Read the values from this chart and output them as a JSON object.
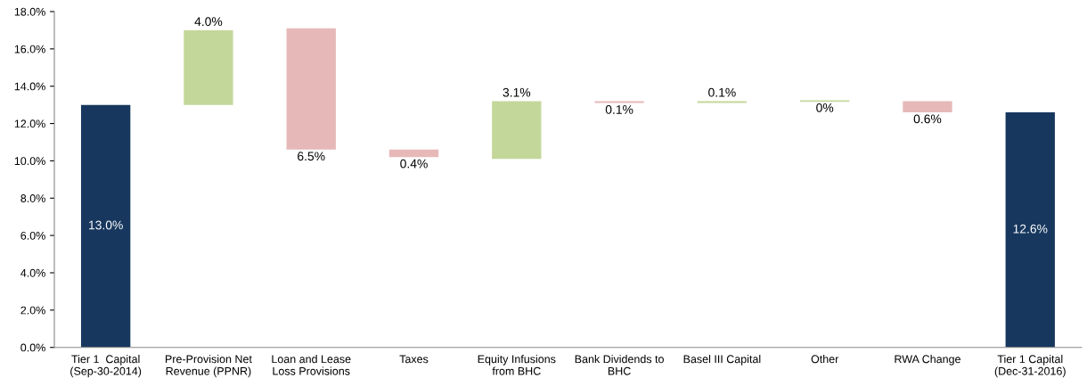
{
  "chart_data": {
    "type": "bar",
    "categories": [
      "Tier 1  Capital\n(Sep-30-2014)",
      "Pre-Provision Net\nRevenue (PPNR)",
      "Loan and Lease\nLoss Provisions",
      "Taxes",
      "Equity Infusions\nfrom BHC",
      "Bank Dividends to\nBHC",
      "Basel III Capital",
      "Other",
      "RWA Change",
      "Tier 1 Capital\n(Dec-31-2016)"
    ],
    "base": [
      0,
      13.0,
      17.1,
      10.6,
      10.1,
      13.2,
      13.1,
      13.2,
      13.2,
      0
    ],
    "values": [
      13.0,
      4.0,
      -6.5,
      -0.4,
      3.1,
      -0.1,
      0.1,
      0,
      -0.6,
      12.6
    ],
    "value_labels": [
      "13.0%",
      "4.0%",
      "6.5%",
      "0.4%",
      "3.1%",
      "0.1%",
      "0.1%",
      "0%",
      "0.6%",
      "12.6%"
    ],
    "colors": [
      "#17375e",
      "#c4d79b",
      "#e6b9b8",
      "#e6b9b8",
      "#c4d79b",
      "#e6b9b8",
      "#c4d79b",
      "#c4d79b",
      "#e6b9b8",
      "#17375e"
    ],
    "ylim": [
      0,
      18
    ],
    "yticks": [
      {
        "value": 0,
        "label": "0.0%"
      },
      {
        "value": 2,
        "label": "2.0%"
      },
      {
        "value": 4,
        "label": "4.0%"
      },
      {
        "value": 6,
        "label": "6.0%"
      },
      {
        "value": 8,
        "label": "8.0%"
      },
      {
        "value": 10,
        "label": "10.0%"
      },
      {
        "value": 12,
        "label": "12.0%"
      },
      {
        "value": 14,
        "label": "14.0%"
      },
      {
        "value": 16,
        "label": "16.0%"
      },
      {
        "value": 18,
        "label": "18.0%"
      }
    ],
    "grid": false
  }
}
